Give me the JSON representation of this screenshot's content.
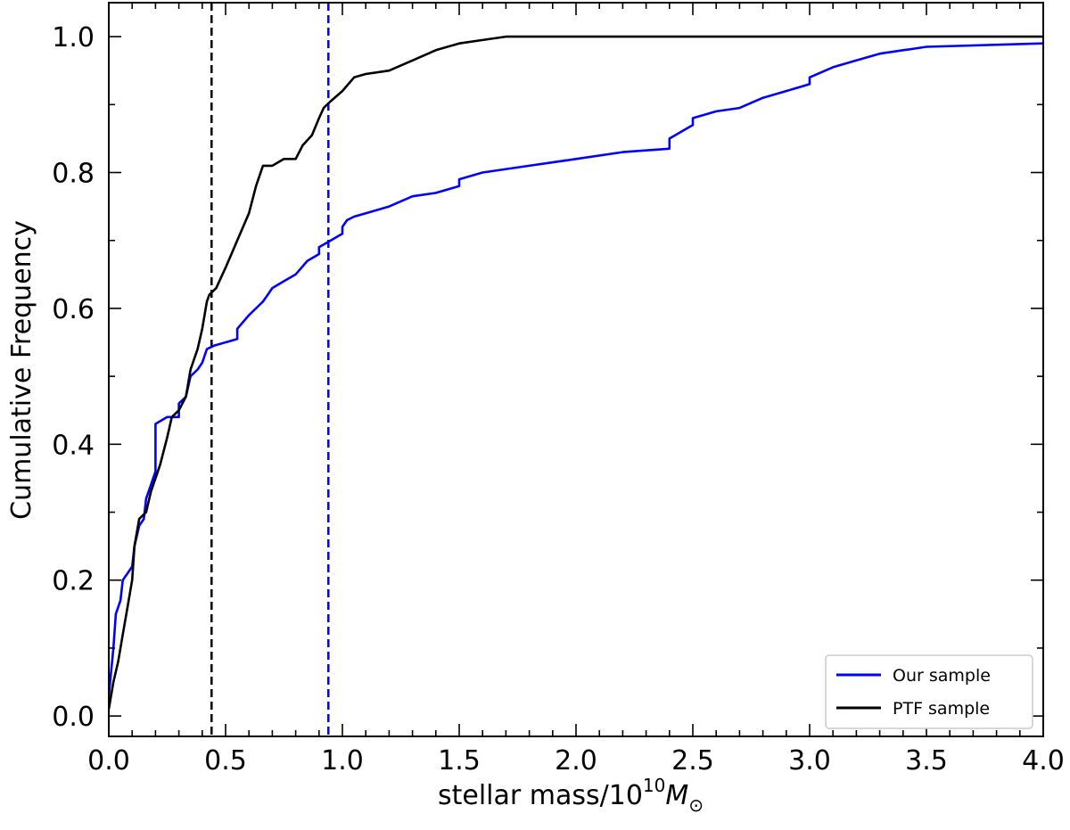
{
  "chart_data": {
    "type": "line",
    "title": "",
    "xlabel_text": "stellar mass/10",
    "xlabel_sup": "10",
    "xlabel_symbol": "M",
    "xlabel_sub": "⊙",
    "ylabel": "Cumulative Frequency",
    "xlim": [
      0.0,
      4.0
    ],
    "ylim": [
      -0.03,
      1.05
    ],
    "xticks": [
      0.0,
      0.5,
      1.0,
      1.5,
      2.0,
      2.5,
      3.0,
      3.5,
      4.0
    ],
    "xtick_labels": [
      "0.0",
      "0.5",
      "1.0",
      "1.5",
      "2.0",
      "2.5",
      "3.0",
      "3.5",
      "4.0"
    ],
    "yticks": [
      0.0,
      0.2,
      0.4,
      0.6,
      0.8,
      1.0
    ],
    "ytick_labels": [
      "0.0",
      "0.2",
      "0.4",
      "0.6",
      "0.8",
      "1.0"
    ],
    "grid": false,
    "legend_position": "lower right",
    "series": [
      {
        "name": "Our sample",
        "color": "#0000ff",
        "points": [
          [
            0.0,
            0.03
          ],
          [
            0.02,
            0.1
          ],
          [
            0.03,
            0.15
          ],
          [
            0.05,
            0.17
          ],
          [
            0.06,
            0.2
          ],
          [
            0.08,
            0.21
          ],
          [
            0.1,
            0.22
          ],
          [
            0.11,
            0.25
          ],
          [
            0.13,
            0.28
          ],
          [
            0.15,
            0.29
          ],
          [
            0.16,
            0.32
          ],
          [
            0.18,
            0.34
          ],
          [
            0.2,
            0.36
          ],
          [
            0.2,
            0.43
          ],
          [
            0.25,
            0.44
          ],
          [
            0.3,
            0.44
          ],
          [
            0.3,
            0.46
          ],
          [
            0.33,
            0.47
          ],
          [
            0.35,
            0.5
          ],
          [
            0.38,
            0.51
          ],
          [
            0.4,
            0.52
          ],
          [
            0.42,
            0.54
          ],
          [
            0.45,
            0.545
          ],
          [
            0.55,
            0.555
          ],
          [
            0.55,
            0.57
          ],
          [
            0.6,
            0.59
          ],
          [
            0.66,
            0.61
          ],
          [
            0.68,
            0.62
          ],
          [
            0.7,
            0.63
          ],
          [
            0.75,
            0.64
          ],
          [
            0.8,
            0.65
          ],
          [
            0.85,
            0.67
          ],
          [
            0.9,
            0.68
          ],
          [
            0.9,
            0.69
          ],
          [
            0.95,
            0.7
          ],
          [
            1.0,
            0.71
          ],
          [
            1.0,
            0.72
          ],
          [
            1.02,
            0.73
          ],
          [
            1.05,
            0.735
          ],
          [
            1.1,
            0.74
          ],
          [
            1.2,
            0.75
          ],
          [
            1.3,
            0.765
          ],
          [
            1.4,
            0.77
          ],
          [
            1.5,
            0.78
          ],
          [
            1.5,
            0.79
          ],
          [
            1.6,
            0.8
          ],
          [
            1.8,
            0.81
          ],
          [
            2.0,
            0.82
          ],
          [
            2.2,
            0.83
          ],
          [
            2.4,
            0.835
          ],
          [
            2.4,
            0.85
          ],
          [
            2.5,
            0.87
          ],
          [
            2.5,
            0.88
          ],
          [
            2.6,
            0.89
          ],
          [
            2.7,
            0.895
          ],
          [
            2.8,
            0.91
          ],
          [
            2.9,
            0.92
          ],
          [
            3.0,
            0.93
          ],
          [
            3.0,
            0.94
          ],
          [
            3.1,
            0.955
          ],
          [
            3.2,
            0.965
          ],
          [
            3.3,
            0.975
          ],
          [
            3.5,
            0.985
          ],
          [
            4.0,
            0.99
          ]
        ]
      },
      {
        "name": "PTF sample",
        "color": "#000000",
        "points": [
          [
            0.0,
            0.01
          ],
          [
            0.02,
            0.05
          ],
          [
            0.04,
            0.08
          ],
          [
            0.06,
            0.12
          ],
          [
            0.08,
            0.16
          ],
          [
            0.1,
            0.2
          ],
          [
            0.11,
            0.25
          ],
          [
            0.13,
            0.29
          ],
          [
            0.16,
            0.3
          ],
          [
            0.18,
            0.33
          ],
          [
            0.2,
            0.35
          ],
          [
            0.22,
            0.37
          ],
          [
            0.25,
            0.41
          ],
          [
            0.27,
            0.44
          ],
          [
            0.3,
            0.45
          ],
          [
            0.33,
            0.47
          ],
          [
            0.35,
            0.51
          ],
          [
            0.38,
            0.54
          ],
          [
            0.4,
            0.57
          ],
          [
            0.42,
            0.61
          ],
          [
            0.43,
            0.62
          ],
          [
            0.46,
            0.63
          ],
          [
            0.5,
            0.66
          ],
          [
            0.55,
            0.7
          ],
          [
            0.6,
            0.74
          ],
          [
            0.63,
            0.78
          ],
          [
            0.66,
            0.81
          ],
          [
            0.7,
            0.81
          ],
          [
            0.75,
            0.82
          ],
          [
            0.8,
            0.82
          ],
          [
            0.83,
            0.84
          ],
          [
            0.87,
            0.855
          ],
          [
            0.9,
            0.88
          ],
          [
            0.92,
            0.895
          ],
          [
            0.95,
            0.905
          ],
          [
            1.0,
            0.92
          ],
          [
            1.05,
            0.94
          ],
          [
            1.1,
            0.945
          ],
          [
            1.2,
            0.95
          ],
          [
            1.3,
            0.965
          ],
          [
            1.4,
            0.98
          ],
          [
            1.5,
            0.99
          ],
          [
            1.6,
            0.995
          ],
          [
            1.7,
            1.0
          ],
          [
            4.0,
            1.0
          ]
        ]
      }
    ],
    "vertical_lines": [
      {
        "x": 0.44,
        "color": "#000000",
        "style": "dashed"
      },
      {
        "x": 0.94,
        "color": "#0000ff",
        "style": "dashed"
      }
    ]
  }
}
